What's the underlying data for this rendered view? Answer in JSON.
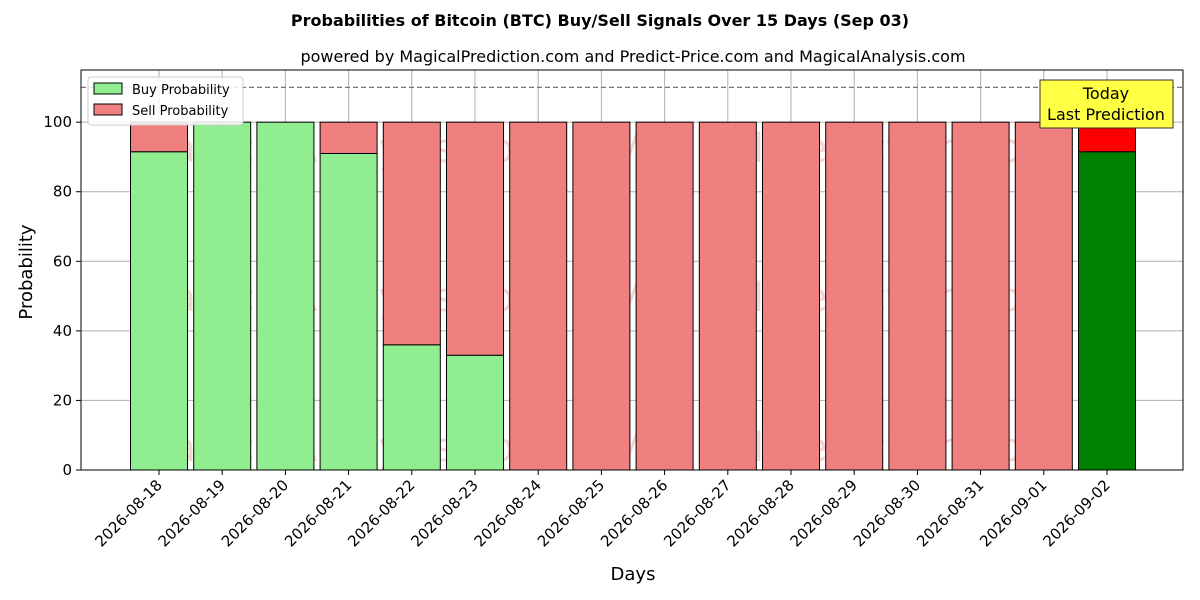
{
  "chart_data": {
    "type": "bar",
    "stacked": true,
    "title": "Probabilities of Bitcoin (BTC) Buy/Sell Signals Over 15 Days (Sep 03)",
    "subtitle": "powered by MagicalPrediction.com and Predict-Price.com and MagicalAnalysis.com",
    "xlabel": "Days",
    "ylabel": "Probability",
    "ylim": [
      0,
      115
    ],
    "yticks": [
      0,
      20,
      40,
      60,
      80,
      100
    ],
    "grid": true,
    "legend_position": "top-left",
    "reference_line": 110,
    "categories": [
      "2026-08-18",
      "2026-08-19",
      "2026-08-20",
      "2026-08-21",
      "2026-08-22",
      "2026-08-23",
      "2026-08-24",
      "2026-08-25",
      "2026-08-26",
      "2026-08-27",
      "2026-08-28",
      "2026-08-29",
      "2026-08-30",
      "2026-08-31",
      "2026-09-01",
      "2026-09-02"
    ],
    "series": [
      {
        "name": "Buy Probability",
        "color": "#90ee90",
        "today_color": "#008000",
        "values": [
          91.5,
          100,
          100,
          91,
          36,
          33,
          0,
          0,
          0,
          0,
          0,
          0,
          0,
          0,
          0,
          91.5
        ]
      },
      {
        "name": "Sell Probability",
        "color": "#f08080",
        "today_color": "#ff0000",
        "values": [
          8.5,
          0,
          0,
          9,
          64,
          67,
          100,
          100,
          100,
          100,
          100,
          100,
          100,
          100,
          100,
          8.5
        ]
      }
    ],
    "annotation": {
      "lines": [
        "Today",
        "Last Prediction"
      ],
      "color": "#ffff44"
    },
    "watermarks": [
      "MagicalAnalysis.com",
      "MagicalPrediction.com"
    ]
  }
}
